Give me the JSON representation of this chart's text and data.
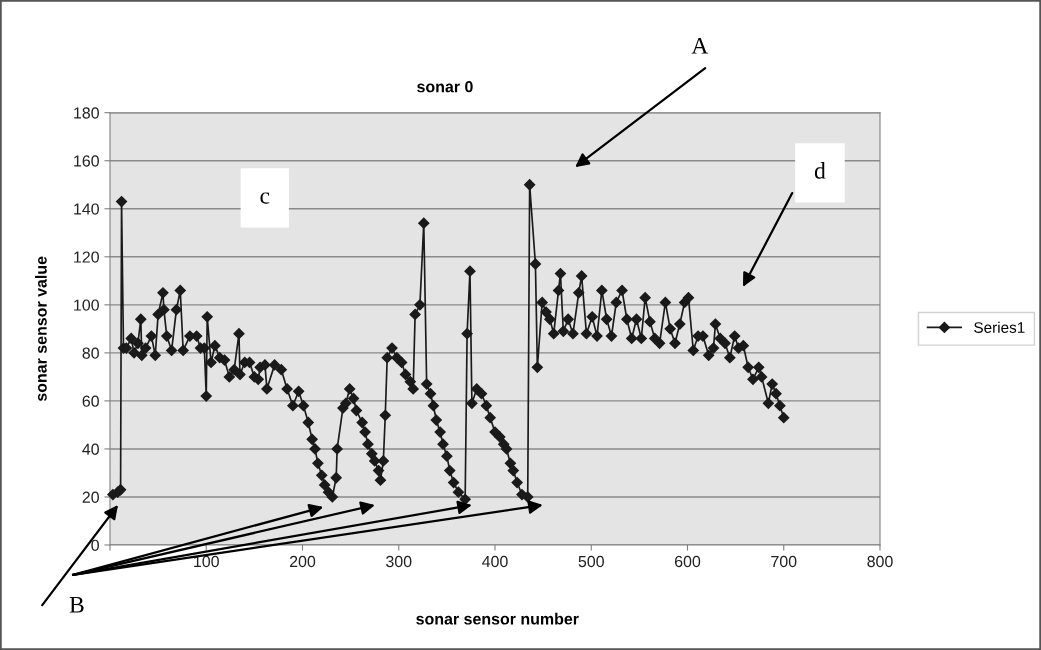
{
  "chart_data": {
    "type": "line",
    "title": "sonar 0",
    "xlabel": "sonar sensor number",
    "ylabel": "sonar sensor value",
    "x": [
      3,
      8,
      11,
      12,
      14,
      17,
      22,
      25,
      29,
      32,
      33,
      37,
      43,
      47,
      50,
      55,
      56,
      59,
      64,
      69,
      73,
      76,
      83,
      90,
      94,
      98,
      100,
      101,
      105,
      109,
      114,
      119,
      124,
      129,
      134,
      135,
      140,
      145,
      150,
      154,
      156,
      161,
      163,
      171,
      178,
      184,
      190,
      196,
      201,
      206,
      210,
      213,
      216,
      220,
      223,
      227,
      231,
      235,
      236,
      242,
      245,
      249,
      253,
      256,
      262,
      265,
      268,
      272,
      275,
      279,
      281,
      284,
      286,
      288,
      293,
      298,
      303,
      307,
      312,
      315,
      317,
      322,
      326,
      329,
      333,
      336,
      339,
      343,
      346,
      350,
      353,
      357,
      362,
      369,
      371,
      374,
      376,
      381,
      386,
      391,
      395,
      400,
      405,
      409,
      412,
      416,
      419,
      423,
      428,
      434,
      436,
      442,
      444,
      449,
      453,
      457,
      461,
      466,
      468,
      471,
      476,
      481,
      487,
      490,
      495,
      501,
      506,
      511,
      516,
      521,
      526,
      532,
      537,
      542,
      547,
      552,
      556,
      561,
      566,
      571,
      577,
      582,
      587,
      592,
      597,
      601,
      606,
      611,
      616,
      622,
      627,
      629,
      634,
      639,
      644,
      649,
      653,
      658,
      663,
      668,
      674,
      677,
      684,
      688,
      692,
      696,
      700
    ],
    "series": [
      {
        "name": "Series1",
        "color": "#1a1a1a",
        "values": [
          21,
          22,
          23,
          143,
          82,
          82,
          86,
          80,
          84,
          94,
          79,
          82,
          87,
          79,
          96,
          105,
          98,
          87,
          81,
          98,
          106,
          81,
          87,
          87,
          82,
          82,
          62,
          95,
          76,
          83,
          78,
          77,
          70,
          73,
          88,
          71,
          76,
          76,
          70,
          69,
          74,
          75,
          65,
          75,
          73,
          65,
          58,
          64,
          58,
          51,
          44,
          40,
          34,
          29,
          25,
          22,
          20,
          28,
          40,
          57,
          59,
          65,
          61,
          56,
          51,
          47,
          42,
          38,
          35,
          31,
          27,
          35,
          54,
          78,
          82,
          78,
          76,
          71,
          68,
          65,
          96,
          100,
          134,
          67,
          63,
          58,
          52,
          47,
          42,
          37,
          31,
          26,
          22,
          19,
          88,
          114,
          59,
          65,
          63,
          58,
          53,
          47,
          45,
          42,
          40,
          34,
          31,
          26,
          21,
          20,
          150,
          117,
          74,
          101,
          97,
          94,
          88,
          106,
          113,
          89,
          94,
          88,
          105,
          112,
          88,
          95,
          87,
          106,
          94,
          87,
          101,
          106,
          94,
          86,
          94,
          86,
          103,
          93,
          86,
          84,
          101,
          90,
          84,
          92,
          101,
          103,
          81,
          87,
          87,
          79,
          82,
          92,
          86,
          84,
          78,
          87,
          82,
          83,
          74,
          69,
          74,
          70,
          59,
          67,
          63,
          58,
          53
        ]
      }
    ],
    "xlim": [
      0,
      800
    ],
    "xticks": [
      {
        "value": 0,
        "label": null
      },
      100,
      200,
      300,
      400,
      500,
      600,
      700,
      800
    ],
    "ylim": [
      0,
      180
    ],
    "yticks": [
      0,
      20,
      40,
      60,
      80,
      100,
      120,
      140,
      160,
      180
    ],
    "grid": "y",
    "legend": "right",
    "marker": "diamond",
    "line_style": "solid",
    "annotations": [
      "A",
      "c",
      "d",
      "B"
    ]
  }
}
